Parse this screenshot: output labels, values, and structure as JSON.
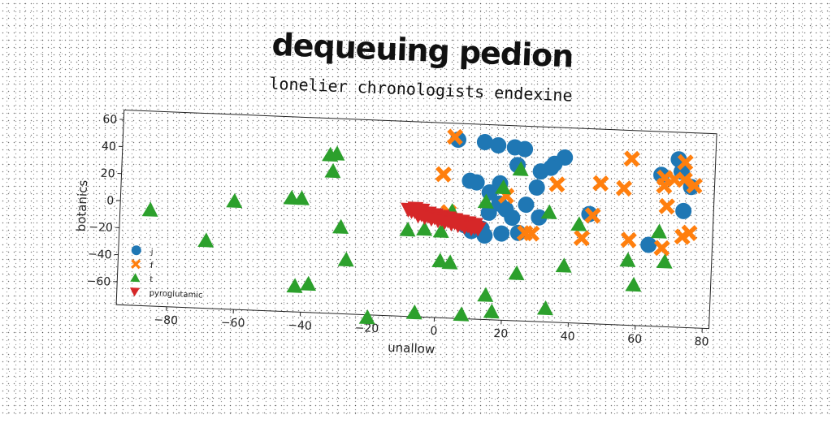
{
  "chart_data": {
    "type": "scatter",
    "title": "dequeuing pedion",
    "subtitle": "lonelier chronologists endexine",
    "xlabel": "unallow",
    "ylabel": "botanics",
    "xlim": [
      -95,
      82
    ],
    "ylim": [
      -77,
      67
    ],
    "xticks": [
      -80,
      -60,
      -40,
      -20,
      0,
      20,
      40,
      60,
      80
    ],
    "yticks": [
      -60,
      -40,
      -20,
      0,
      20,
      40,
      60
    ],
    "xtick_labels": [
      "−80",
      "−60",
      "−40",
      "−20",
      "0",
      "20",
      "40",
      "60",
      "80"
    ],
    "ytick_labels": [
      "−60",
      "−40",
      "−20",
      "0",
      "20",
      "40",
      "60"
    ],
    "legend_position": "lower-left",
    "grid": false,
    "series": [
      {
        "name": "j",
        "marker": "circle",
        "color": "#1f77b4",
        "points": [
          [
            5,
            55
          ],
          [
            13,
            54
          ],
          [
            17,
            52
          ],
          [
            22,
            51
          ],
          [
            25,
            50
          ],
          [
            37,
            45
          ],
          [
            34,
            40
          ],
          [
            23,
            38
          ],
          [
            33,
            37
          ],
          [
            30,
            34
          ],
          [
            66,
            35
          ],
          [
            71,
            47
          ],
          [
            72,
            38
          ],
          [
            9,
            25
          ],
          [
            11,
            24
          ],
          [
            18,
            24
          ],
          [
            29,
            22
          ],
          [
            75,
            27
          ],
          [
            15,
            17
          ],
          [
            26,
            9
          ],
          [
            18,
            9
          ],
          [
            73,
            9
          ],
          [
            20,
            5
          ],
          [
            45,
            4
          ],
          [
            15,
            2
          ],
          [
            30,
            0
          ],
          [
            22,
            -1
          ],
          [
            8,
            -8
          ],
          [
            13,
            -10
          ],
          [
            10,
            -12
          ],
          [
            14,
            -15
          ],
          [
            19,
            -13
          ],
          [
            24,
            -12
          ],
          [
            63,
            -17
          ]
        ]
      },
      {
        "name": "f",
        "marker": "x",
        "color": "#ff7f0e",
        "points": [
          [
            4,
            57
          ],
          [
            57,
            46
          ],
          [
            73,
            45
          ],
          [
            1,
            29
          ],
          [
            35,
            25
          ],
          [
            48,
            27
          ],
          [
            55,
            24
          ],
          [
            67,
            33
          ],
          [
            70,
            32
          ],
          [
            73,
            32
          ],
          [
            76,
            28
          ],
          [
            67,
            27
          ],
          [
            68,
            12
          ],
          [
            20,
            15
          ],
          [
            3,
            1
          ],
          [
            46,
            3
          ],
          [
            26,
            -12
          ],
          [
            28,
            -12
          ],
          [
            43,
            -14
          ],
          [
            57,
            -14
          ],
          [
            67,
            -19
          ],
          [
            73,
            -10
          ],
          [
            75,
            -7
          ]
        ]
      },
      {
        "name": "t",
        "marker": "triangle-up",
        "color": "#2ca02c",
        "points": [
          [
            -33,
            40
          ],
          [
            -31,
            41
          ],
          [
            -32,
            28
          ],
          [
            -44,
            7
          ],
          [
            -41,
            7
          ],
          [
            -61,
            3
          ],
          [
            -86,
            -6
          ],
          [
            -69,
            -27
          ],
          [
            -29,
            -13
          ],
          [
            -27,
            -37
          ],
          [
            -42,
            -58
          ],
          [
            -38,
            -56
          ],
          [
            -9,
            -13
          ],
          [
            -4,
            -12
          ],
          [
            1,
            -13
          ],
          [
            4,
            2
          ],
          [
            1,
            -35
          ],
          [
            4,
            -36
          ],
          [
            19,
            21
          ],
          [
            14,
            10
          ],
          [
            24,
            35
          ],
          [
            33,
            4
          ],
          [
            42,
            -4
          ],
          [
            24,
            -42
          ],
          [
            38,
            -35
          ],
          [
            15,
            -59
          ],
          [
            17,
            -71
          ],
          [
            33,
            -67
          ],
          [
            -20,
            -79
          ],
          [
            -6,
            -74
          ],
          [
            8,
            -74
          ],
          [
            57,
            -29
          ],
          [
            59,
            -47
          ],
          [
            66,
            -7
          ],
          [
            68,
            -29
          ]
        ]
      },
      {
        "name": "pyroglutamic",
        "marker": "triangle-down",
        "color": "#d62728",
        "points": [
          [
            -9,
            2
          ],
          [
            -8,
            1
          ],
          [
            -7,
            1
          ],
          [
            -6,
            0
          ],
          [
            -5,
            -1
          ],
          [
            -4,
            -1
          ],
          [
            -3,
            -2
          ],
          [
            -2,
            -3
          ],
          [
            -1,
            -3
          ],
          [
            0,
            -4
          ],
          [
            1,
            -4
          ],
          [
            2,
            -5
          ],
          [
            3,
            -5
          ],
          [
            4,
            -6
          ],
          [
            5,
            -6
          ],
          [
            6,
            -7
          ],
          [
            7,
            -7
          ],
          [
            8,
            -8
          ],
          [
            9,
            -8
          ],
          [
            10,
            -9
          ],
          [
            11,
            -9
          ],
          [
            12,
            -10
          ],
          [
            -7,
            3
          ],
          [
            -5,
            2
          ],
          [
            -3,
            0
          ],
          [
            -1,
            -1
          ],
          [
            1,
            -2
          ],
          [
            3,
            -3
          ],
          [
            5,
            -4
          ],
          [
            7,
            -5
          ],
          [
            9,
            -6
          ],
          [
            11,
            -7
          ],
          [
            -6,
            -2
          ],
          [
            -4,
            -3
          ],
          [
            -2,
            -4
          ],
          [
            0,
            -5
          ],
          [
            2,
            -6
          ],
          [
            4,
            -7
          ],
          [
            6,
            -8
          ],
          [
            8,
            -9
          ],
          [
            10,
            -10
          ]
        ]
      }
    ]
  }
}
